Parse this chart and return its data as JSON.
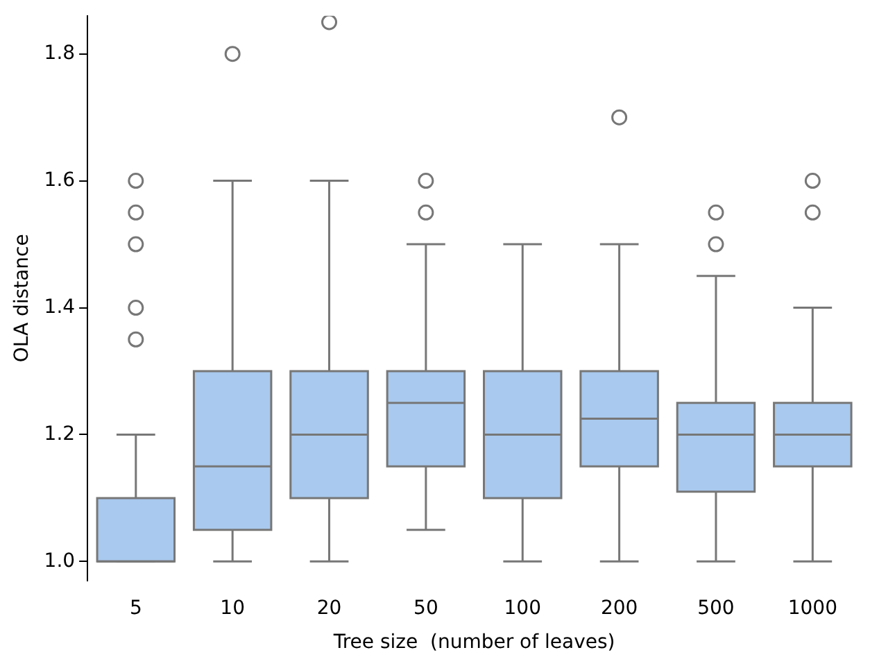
{
  "chart_data": {
    "type": "box",
    "xlabel": "Tree size  (number of leaves)",
    "ylabel": "OLA distance",
    "categories": [
      "5",
      "10",
      "20",
      "50",
      "100",
      "200",
      "500",
      "1000"
    ],
    "color": "#a9c9ee",
    "boxes": [
      {
        "low": 1.0,
        "q1": 1.0,
        "median": 1.0,
        "q3": 1.1,
        "high": 1.2,
        "outliers": [
          1.35,
          1.4,
          1.5,
          1.55,
          1.6
        ]
      },
      {
        "low": 1.0,
        "q1": 1.05,
        "median": 1.15,
        "q3": 1.3,
        "high": 1.6,
        "outliers": [
          1.8
        ]
      },
      {
        "low": 1.0,
        "q1": 1.1,
        "median": 1.2,
        "q3": 1.3,
        "high": 1.6,
        "outliers": [
          1.85
        ]
      },
      {
        "low": 1.05,
        "q1": 1.15,
        "median": 1.25,
        "q3": 1.3,
        "high": 1.5,
        "outliers": [
          1.55,
          1.6
        ]
      },
      {
        "low": 1.0,
        "q1": 1.1,
        "median": 1.2,
        "q3": 1.3,
        "high": 1.5
      },
      {
        "low": 1.0,
        "q1": 1.15,
        "median": 1.225,
        "q3": 1.3,
        "high": 1.5,
        "outliers": [
          1.7
        ]
      },
      {
        "low": 1.0,
        "q1": 1.11,
        "median": 1.2,
        "q3": 1.25,
        "high": 1.45,
        "outliers": [
          1.5,
          1.55
        ]
      },
      {
        "low": 1.0,
        "q1": 1.15,
        "median": 1.2,
        "q3": 1.25,
        "high": 1.4,
        "outliers": [
          1.55,
          1.6
        ]
      }
    ],
    "ylim": [
      0.97,
      1.86
    ],
    "yticks": [
      {
        "value": 1,
        "label": "1.0"
      },
      {
        "value": 1.2,
        "label": "1.2"
      },
      {
        "value": 1.4,
        "label": "1.4"
      },
      {
        "value": 1.6,
        "label": "1.6"
      },
      {
        "value": 1.8,
        "label": "1.8"
      }
    ]
  }
}
